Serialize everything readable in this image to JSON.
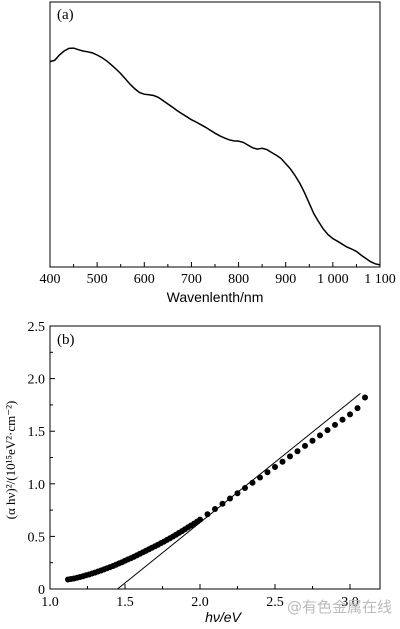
{
  "chart_data": [
    {
      "panel_label": "(a)",
      "type": "line",
      "xlabel": "Wavenlenth/nm",
      "xlim": [
        400,
        1100
      ],
      "xticks": [
        {
          "v": 400,
          "label": "400"
        },
        {
          "v": 500,
          "label": "500"
        },
        {
          "v": 600,
          "label": "600"
        },
        {
          "v": 700,
          "label": "700"
        },
        {
          "v": 800,
          "label": "800"
        },
        {
          "v": 900,
          "label": "900"
        },
        {
          "v": 1000,
          "label": "1 000"
        },
        {
          "v": 1100,
          "label": "1 100"
        }
      ],
      "ylim": [
        0,
        1
      ],
      "y_ticks_labeled": false,
      "x": [
        400,
        410,
        420,
        430,
        440,
        450,
        460,
        470,
        480,
        490,
        500,
        510,
        520,
        530,
        540,
        550,
        560,
        570,
        580,
        590,
        600,
        610,
        620,
        630,
        640,
        650,
        660,
        670,
        680,
        690,
        700,
        710,
        720,
        730,
        740,
        750,
        760,
        770,
        780,
        790,
        800,
        810,
        820,
        830,
        840,
        850,
        860,
        870,
        880,
        890,
        900,
        910,
        920,
        930,
        940,
        950,
        960,
        970,
        980,
        990,
        1000,
        1010,
        1020,
        1030,
        1040,
        1050,
        1060,
        1070,
        1080,
        1090,
        1100
      ],
      "y": [
        0.775,
        0.78,
        0.8,
        0.815,
        0.825,
        0.826,
        0.82,
        0.815,
        0.812,
        0.808,
        0.8,
        0.79,
        0.778,
        0.763,
        0.747,
        0.73,
        0.71,
        0.69,
        0.672,
        0.658,
        0.652,
        0.65,
        0.647,
        0.64,
        0.628,
        0.615,
        0.603,
        0.59,
        0.578,
        0.567,
        0.556,
        0.547,
        0.537,
        0.527,
        0.516,
        0.505,
        0.495,
        0.487,
        0.48,
        0.476,
        0.475,
        0.47,
        0.46,
        0.45,
        0.445,
        0.448,
        0.443,
        0.432,
        0.422,
        0.41,
        0.39,
        0.37,
        0.345,
        0.315,
        0.28,
        0.24,
        0.2,
        0.17,
        0.143,
        0.122,
        0.107,
        0.097,
        0.086,
        0.075,
        0.068,
        0.059,
        0.045,
        0.032,
        0.02,
        0.012,
        0.008
      ]
    },
    {
      "panel_label": "(b)",
      "type": "scatter",
      "xlabel": "hν/eV",
      "ylabel": "(α hν)²/(10¹⁵eV²·cm⁻²)",
      "xlim": [
        1.0,
        3.2
      ],
      "ylim": [
        0,
        2.5
      ],
      "xticks": [
        {
          "v": 1.0,
          "label": "1.0"
        },
        {
          "v": 1.5,
          "label": "1.5"
        },
        {
          "v": 2.0,
          "label": "2.0"
        },
        {
          "v": 2.5,
          "label": "2.5"
        },
        {
          "v": 3.0,
          "label": "3.0"
        }
      ],
      "yticks": [
        {
          "v": 0,
          "label": "0"
        },
        {
          "v": 0.5,
          "label": "0.5"
        },
        {
          "v": 1.0,
          "label": "1.0"
        },
        {
          "v": 1.5,
          "label": "1.5"
        },
        {
          "v": 2.0,
          "label": "2.0"
        },
        {
          "v": 2.5,
          "label": "2.5"
        }
      ],
      "x": [
        1.12,
        1.14,
        1.16,
        1.18,
        1.2,
        1.22,
        1.24,
        1.26,
        1.28,
        1.3,
        1.32,
        1.34,
        1.36,
        1.38,
        1.4,
        1.42,
        1.44,
        1.46,
        1.48,
        1.5,
        1.52,
        1.54,
        1.56,
        1.58,
        1.6,
        1.62,
        1.64,
        1.66,
        1.68,
        1.7,
        1.72,
        1.74,
        1.76,
        1.78,
        1.8,
        1.82,
        1.84,
        1.86,
        1.88,
        1.9,
        1.92,
        1.94,
        1.96,
        1.98,
        2.0,
        2.05,
        2.1,
        2.15,
        2.2,
        2.25,
        2.3,
        2.35,
        2.4,
        2.45,
        2.5,
        2.55,
        2.6,
        2.65,
        2.7,
        2.75,
        2.8,
        2.85,
        2.9,
        2.95,
        3.0,
        3.05,
        3.1
      ],
      "y": [
        0.09,
        0.095,
        0.1,
        0.107,
        0.114,
        0.122,
        0.13,
        0.138,
        0.147,
        0.156,
        0.166,
        0.176,
        0.186,
        0.197,
        0.208,
        0.219,
        0.231,
        0.243,
        0.255,
        0.268,
        0.281,
        0.294,
        0.307,
        0.321,
        0.335,
        0.349,
        0.363,
        0.377,
        0.392,
        0.406,
        0.421,
        0.436,
        0.451,
        0.467,
        0.483,
        0.499,
        0.516,
        0.533,
        0.55,
        0.568,
        0.586,
        0.604,
        0.622,
        0.64,
        0.66,
        0.71,
        0.76,
        0.81,
        0.86,
        0.91,
        0.96,
        1.01,
        1.06,
        1.11,
        1.16,
        1.21,
        1.26,
        1.31,
        1.36,
        1.41,
        1.46,
        1.51,
        1.56,
        1.61,
        1.66,
        1.72,
        1.82
      ],
      "fit_line": {
        "x": [
          1.45,
          3.07
        ],
        "y": [
          0.0,
          1.86
        ]
      }
    }
  ],
  "watermark": "@有色金属在线"
}
